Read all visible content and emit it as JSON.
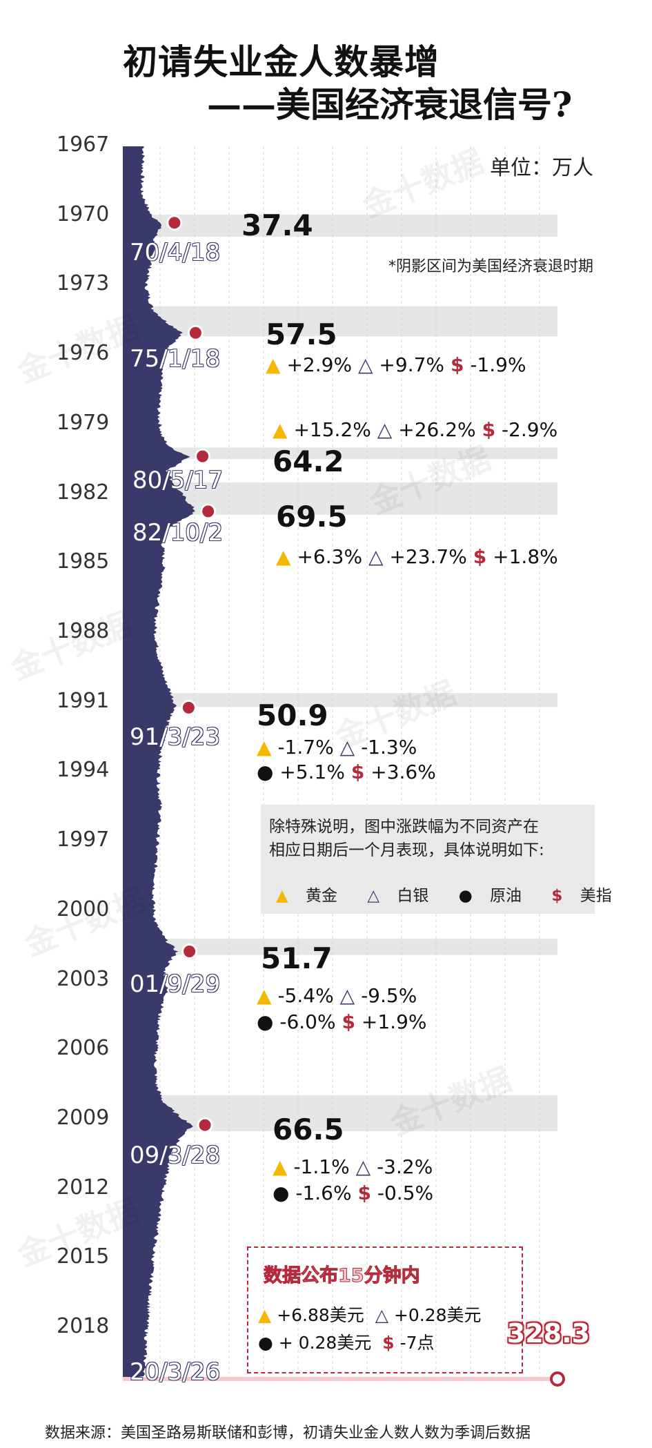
{
  "title": {
    "line1": "初请失业金人数暴增",
    "line2": "——美国经济衰退信号?"
  },
  "unit": "单位：万人",
  "note": "*阴影区间为美国经济衰退时期",
  "source": "数据来源：美国圣路易斯联储和彭博，初请失业金人数人数为季调后数据",
  "watermark": "金十数据",
  "icons": {
    "gold": "gold-bar-icon",
    "silver": "silver-bar-icon",
    "oil": "oil-drop-icon",
    "usd": "dollar-icon"
  },
  "colors": {
    "area": "#3a3a6a",
    "marker": "#b52a3a",
    "shade": "#e6e6e6",
    "gold": "#f5b800"
  },
  "info": {
    "line1": "除特殊说明，图中涨跌幅为不同资产在",
    "line2": "相应日期后一个月表现，具体说明如下:",
    "legend": {
      "gold": "黄金",
      "silver": "白银",
      "oil": "原油",
      "usd": "美指"
    }
  },
  "live": {
    "title": "数据公布15分钟内",
    "gold": "+6.88美元",
    "silver": "+0.28美元",
    "oil": "+ 0.28美元",
    "usd": "-7点"
  },
  "latest": {
    "date": "20/3/26",
    "value": "328.3"
  },
  "events": [
    {
      "date": "70/4/18",
      "value": "37.4"
    },
    {
      "date": "75/1/18",
      "value": "57.5",
      "gold": "+2.9%",
      "silver": "+9.7%",
      "usd": "-1.9%"
    },
    {
      "gold": "+15.2%",
      "silver": "+26.2%",
      "usd": "-2.9%"
    },
    {
      "date": "80/5/17",
      "value": "64.2"
    },
    {
      "date": "82/10/2",
      "value": "69.5",
      "gold": "+6.3%",
      "silver": "+23.7%",
      "usd": "+1.8%"
    },
    {
      "date": "91/3/23",
      "value": "50.9",
      "gold": "-1.7%",
      "silver": "-1.3%",
      "oil": "+5.1%",
      "usd": "+3.6%"
    },
    {
      "date": "01/9/29",
      "value": "51.7",
      "gold": "-5.4%",
      "silver": "-9.5%",
      "oil": "-6.0%",
      "usd": "+1.9%"
    },
    {
      "date": "09/3/28",
      "value": "66.5",
      "gold": "-1.1%",
      "silver": "-3.2%",
      "oil": "-1.6%",
      "usd": "-0.5%"
    }
  ],
  "chart_data": {
    "type": "area",
    "orientation": "horizontal",
    "title": "初请失业金人数暴增——美国经济衰退信号?",
    "unit": "万人",
    "y_ticks": [
      "1967",
      "1970",
      "1973",
      "1976",
      "1979",
      "1982",
      "1985",
      "1988",
      "1991",
      "1994",
      "1997",
      "2000",
      "2003",
      "2006",
      "2009",
      "2012",
      "2015",
      "2018"
    ],
    "series": [
      {
        "x": [
          1967.0,
          1968.0,
          1969.0,
          1970.0,
          1970.3,
          1971.0,
          1972.0,
          1973.0,
          1974.0,
          1974.6,
          1975.05,
          1975.6,
          1976.5,
          1977.5,
          1978.5,
          1979.5,
          1980.0,
          1980.4,
          1981.0,
          1981.5,
          1982.0,
          1982.75,
          1983.5,
          1984.0,
          1985.0,
          1986.0,
          1987.0,
          1988.0,
          1989.0,
          1990.0,
          1990.6,
          1991.2,
          1991.8,
          1992.5,
          1993.5,
          1994.5,
          1995.5,
          1996.5,
          1997.5,
          1998.5,
          1999.5,
          2000.5,
          2001.2,
          2001.75,
          2002.5,
          2003.5,
          2004.5,
          2005.5,
          2006.5,
          2007.5,
          2008.2,
          2008.8,
          2009.24,
          2009.8,
          2010.5,
          2011.5,
          2012.5,
          2013.5,
          2014.5,
          2015.5,
          2016.5,
          2017.5,
          2018.5,
          2019.5,
          2020.0,
          2020.15
        ],
        "values": [
          20,
          19,
          18,
          27,
          37.4,
          30,
          27,
          22,
          28,
          42,
          57.5,
          45,
          37,
          36,
          34,
          37,
          45,
          64.2,
          42,
          48,
          56,
          69.5,
          43,
          38,
          39,
          37,
          32,
          31,
          34,
          40,
          46,
          50.9,
          43,
          40,
          35,
          34,
          36,
          34,
          32,
          31,
          29,
          31,
          40,
          51.7,
          40,
          42,
          35,
          33,
          31,
          32,
          38,
          52,
          66.5,
          55,
          46,
          41,
          37,
          34,
          30,
          28,
          26,
          24,
          22,
          21,
          21,
          328.3
        ]
      }
    ],
    "ylim": [
      1967,
      2020.2
    ],
    "xlim": [
      0,
      328.3
    ],
    "recessions": [
      [
        1969.95,
        1970.9
      ],
      [
        1973.9,
        1975.2
      ],
      [
        1980.0,
        1980.5
      ],
      [
        1981.5,
        1982.9
      ],
      [
        1990.6,
        1991.2
      ],
      [
        2001.2,
        2001.9
      ],
      [
        2007.95,
        2009.5
      ]
    ],
    "highlights": [
      {
        "date": "70/4/18",
        "value": 37.4
      },
      {
        "date": "75/1/18",
        "value": 57.5
      },
      {
        "date": "80/5/17",
        "value": 64.2
      },
      {
        "date": "82/10/2",
        "value": 69.5
      },
      {
        "date": "91/3/23",
        "value": 50.9
      },
      {
        "date": "01/9/29",
        "value": 51.7
      },
      {
        "date": "09/3/28",
        "value": 66.5
      },
      {
        "date": "20/3/26",
        "value": 328.3
      }
    ]
  }
}
